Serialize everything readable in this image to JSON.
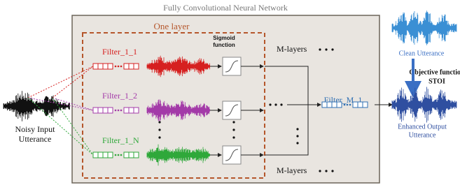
{
  "outer_box": {
    "title": "Fully Convolutional Neural Network"
  },
  "layer_box": {
    "title": "One layer"
  },
  "sigmoid": {
    "label": [
      "Sigmoid",
      "function"
    ]
  },
  "filters": [
    {
      "label": "Filter_1_1"
    },
    {
      "label": "Filter_1_2"
    },
    {
      "label": "Filter_1_N"
    }
  ],
  "m_layers": [
    "M-layers",
    "M-layers"
  ],
  "final_filter": {
    "label": "Filter_M_1"
  },
  "input": {
    "label": [
      "Noisy Input",
      "Utterance"
    ]
  },
  "clean": {
    "label": "Clean Utterance"
  },
  "objective": {
    "label": [
      "Objective function",
      "STOI"
    ]
  },
  "enhanced": {
    "label": [
      "Enhanced Output",
      "Utterance"
    ]
  }
}
